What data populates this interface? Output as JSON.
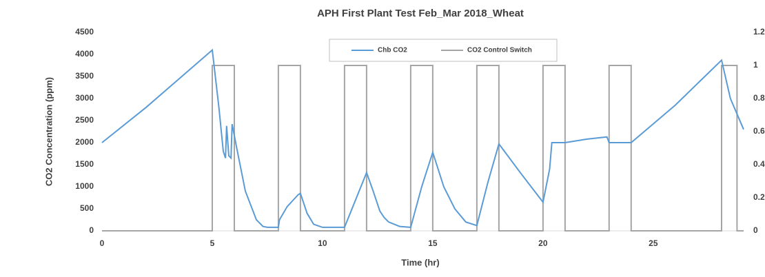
{
  "chart_data": {
    "type": "line",
    "title": "APH First Plant Test Feb_Mar 2018_Wheat",
    "x_label": "Time (hr)",
    "y_label": "CO2 Concentration (ppm)",
    "xlim": [
      0,
      29.1
    ],
    "xticks": [
      0,
      5,
      10,
      15,
      20,
      25
    ],
    "ylim": [
      0,
      4500
    ],
    "yticks": [
      0,
      500,
      1000,
      1500,
      2000,
      2500,
      3000,
      3500,
      4000,
      4500
    ],
    "y2lim": [
      0,
      1.2
    ],
    "y2ticks": [
      0,
      0.2,
      0.4,
      0.6,
      0.8,
      1,
      1.2
    ],
    "legend": "top",
    "series": [
      {
        "name": "Chb CO2",
        "color": "#5b9bd5",
        "x": [
          0,
          2,
          5,
          5.3,
          5.5,
          5.6,
          5.65,
          5.75,
          5.85,
          5.9,
          6.1,
          6.5,
          7,
          7.3,
          7.5,
          8,
          8.05,
          8.4,
          8.9,
          9,
          9.3,
          9.6,
          10,
          11,
          11.5,
          12,
          12.3,
          12.6,
          12.8,
          13,
          13.5,
          14,
          14.5,
          15,
          15.5,
          16,
          16.5,
          17,
          17.5,
          18,
          19,
          20,
          20.3,
          20.4,
          21,
          22,
          22.9,
          23,
          24,
          26,
          28.1,
          28.5,
          29.1
        ],
        "values": [
          2000,
          2800,
          4100,
          2800,
          1800,
          1650,
          2380,
          1700,
          1650,
          2420,
          1900,
          900,
          250,
          100,
          80,
          80,
          250,
          550,
          820,
          850,
          400,
          150,
          80,
          80,
          700,
          1320,
          900,
          450,
          300,
          200,
          100,
          80,
          1000,
          1780,
          1000,
          500,
          200,
          120,
          1100,
          1970,
          1300,
          650,
          1400,
          2000,
          2000,
          2080,
          2130,
          2000,
          2000,
          2850,
          3870,
          3000,
          2300
        ]
      },
      {
        "name": "CO2 Control Switch",
        "color": "#a5a5a5",
        "axis": "y2",
        "x": [
          0,
          5,
          5,
          6,
          6,
          8,
          8,
          9,
          9,
          11,
          11,
          12,
          12,
          14,
          14,
          15,
          15,
          17,
          17,
          18,
          18,
          20,
          20,
          21,
          21,
          23,
          23,
          24,
          24,
          28.1,
          28.1,
          28.8,
          28.8,
          29.1
        ],
        "values": [
          0,
          0,
          1,
          1,
          0,
          0,
          1,
          1,
          0,
          0,
          1,
          1,
          0,
          0,
          1,
          1,
          0,
          0,
          1,
          1,
          0,
          0,
          1,
          1,
          0,
          0,
          1,
          1,
          0,
          0,
          1,
          1,
          0,
          0
        ]
      }
    ]
  }
}
